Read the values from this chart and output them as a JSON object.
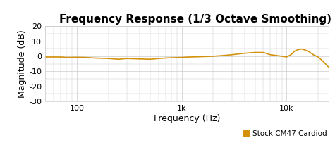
{
  "title": "Frequency Response (1/3 Octave Smoothing)",
  "xlabel": "Frequency (Hz)",
  "ylabel": "Magnitude (dB)",
  "xlim": [
    50,
    25000
  ],
  "ylim": [
    -30,
    20
  ],
  "yticks": [
    20,
    10,
    0,
    -10,
    -20,
    -30
  ],
  "xtick_labels": [
    "100",
    "1k",
    "10k"
  ],
  "xtick_positions": [
    100,
    1000,
    10000
  ],
  "line_color": "#D4920A",
  "legend_label": "Stock CM47 Cardiod",
  "legend_color": "#D4920A",
  "bg_color": "#ffffff",
  "grid_color": "#cccccc",
  "title_fontsize": 11,
  "label_fontsize": 9,
  "tick_fontsize": 8,
  "curve_x": [
    50,
    60,
    70,
    80,
    100,
    120,
    150,
    200,
    250,
    300,
    400,
    500,
    600,
    700,
    800,
    1000,
    1200,
    1500,
    2000,
    2500,
    3000,
    4000,
    5000,
    6000,
    7000,
    8000,
    9000,
    10000,
    11000,
    12000,
    13000,
    14000,
    16000,
    18000,
    20000,
    22000,
    25000
  ],
  "curve_y": [
    -0.5,
    -0.5,
    -0.5,
    -0.8,
    -0.7,
    -0.8,
    -1.2,
    -1.5,
    -2.0,
    -1.5,
    -1.8,
    -2.0,
    -1.5,
    -1.2,
    -1.0,
    -0.8,
    -0.5,
    -0.3,
    0.0,
    0.5,
    1.0,
    2.0,
    2.5,
    2.5,
    1.0,
    0.5,
    0.0,
    -0.5,
    1.0,
    3.5,
    4.5,
    4.8,
    3.5,
    1.0,
    -0.5,
    -3.0,
    -7.0
  ]
}
